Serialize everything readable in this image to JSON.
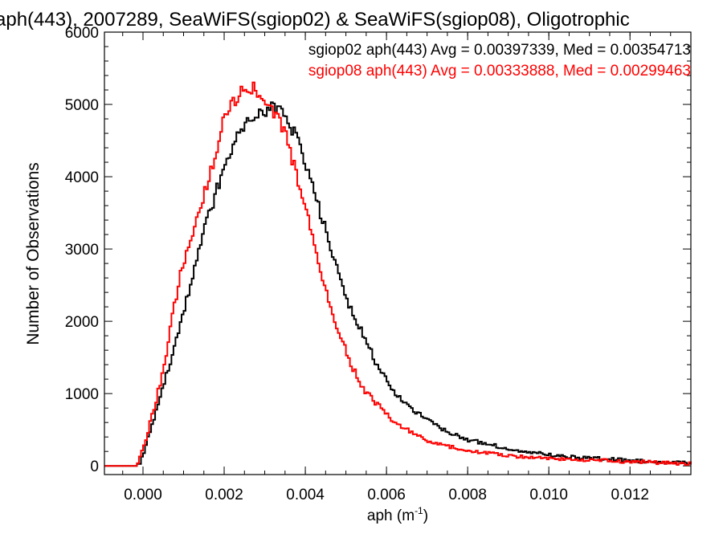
{
  "chart_data": {
    "type": "histogram-step",
    "title": "aph(443), 2007289, SeaWiFS(sgiop02) & SeaWiFS(sgiop08), Oligotrophic",
    "xlabel_main": "aph (m",
    "xlabel_sup": "-1",
    "xlabel_close": ")",
    "ylabel": "Number of Observations",
    "xlim": [
      -0.00095,
      0.0135
    ],
    "ylim": [
      -120,
      6000
    ],
    "x_ticks": [
      0.0,
      0.002,
      0.004,
      0.006,
      0.008,
      0.01,
      0.012
    ],
    "x_tick_labels": [
      "0.000",
      "0.002",
      "0.004",
      "0.006",
      "0.008",
      "0.010",
      "0.012"
    ],
    "y_ticks": [
      0,
      1000,
      2000,
      3000,
      4000,
      5000,
      6000
    ],
    "y_tick_labels": [
      "0",
      "1000",
      "2000",
      "3000",
      "4000",
      "5000",
      "6000"
    ],
    "grid": false,
    "legend_position": "top-right",
    "series": [
      {
        "name": "sgiop02 aph(443)",
        "stats_label": "sgiop02 aph(443) Avg = 0.00397339, Med = 0.00354713",
        "color": "#000000",
        "bin_width": 5e-05,
        "x": [
          -0.0004,
          -0.0003,
          -0.0002,
          -0.0001,
          0.0,
          0.0001,
          0.0002,
          0.0003,
          0.0005,
          0.0007,
          0.0009,
          0.0011,
          0.0013,
          0.0015,
          0.0017,
          0.0019,
          0.0021,
          0.0023,
          0.0025,
          0.0027,
          0.0029,
          0.0031,
          0.0032,
          0.0033,
          0.0034,
          0.0035,
          0.0037,
          0.0039,
          0.0041,
          0.0043,
          0.0045,
          0.0047,
          0.0049,
          0.0051,
          0.0053,
          0.0055,
          0.0057,
          0.006,
          0.0063,
          0.0066,
          0.007,
          0.0075,
          0.008,
          0.0085,
          0.009,
          0.0095,
          0.01,
          0.0105,
          0.011,
          0.0115,
          0.012,
          0.0125,
          0.013,
          0.0135
        ],
        "y": [
          0,
          0,
          0,
          50,
          200,
          380,
          560,
          740,
          1150,
          1550,
          1950,
          2400,
          2850,
          3280,
          3650,
          4000,
          4300,
          4550,
          4700,
          4800,
          4880,
          4930,
          4950,
          4900,
          4870,
          4800,
          4600,
          4320,
          4000,
          3600,
          3200,
          2820,
          2450,
          2150,
          1920,
          1680,
          1450,
          1150,
          950,
          780,
          620,
          470,
          360,
          300,
          230,
          190,
          150,
          120,
          110,
          90,
          70,
          60,
          50,
          40
        ]
      },
      {
        "name": "sgiop08 aph(443)",
        "stats_label": "sgiop08 aph(443) Avg = 0.00333888, Med = 0.00299463",
        "color": "#ff0000",
        "bin_width": 5e-05,
        "x": [
          -0.0004,
          -0.0003,
          -0.0002,
          -0.0001,
          0.0,
          0.0001,
          0.0002,
          0.0003,
          0.0005,
          0.0007,
          0.0009,
          0.0011,
          0.0013,
          0.0015,
          0.0017,
          0.0019,
          0.0021,
          0.0023,
          0.0025,
          0.0026,
          0.0027,
          0.0029,
          0.0031,
          0.0033,
          0.0035,
          0.0037,
          0.0039,
          0.0041,
          0.0043,
          0.0045,
          0.0047,
          0.0049,
          0.0051,
          0.0053,
          0.0055,
          0.0057,
          0.006,
          0.0063,
          0.0066,
          0.007,
          0.0075,
          0.008,
          0.0085,
          0.009,
          0.0095,
          0.01,
          0.0105,
          0.011,
          0.0115,
          0.012,
          0.0125,
          0.013,
          0.0135
        ],
        "y": [
          0,
          0,
          0,
          120,
          280,
          480,
          700,
          900,
          1400,
          2050,
          2650,
          3050,
          3400,
          3800,
          4200,
          4650,
          4950,
          5120,
          5200,
          5250,
          5230,
          5100,
          4960,
          4780,
          4550,
          4150,
          3750,
          3300,
          2850,
          2400,
          2050,
          1700,
          1420,
          1180,
          1000,
          880,
          700,
          560,
          460,
          350,
          270,
          210,
          170,
          140,
          120,
          100,
          90,
          80,
          70,
          60,
          50,
          40,
          30
        ]
      }
    ]
  }
}
